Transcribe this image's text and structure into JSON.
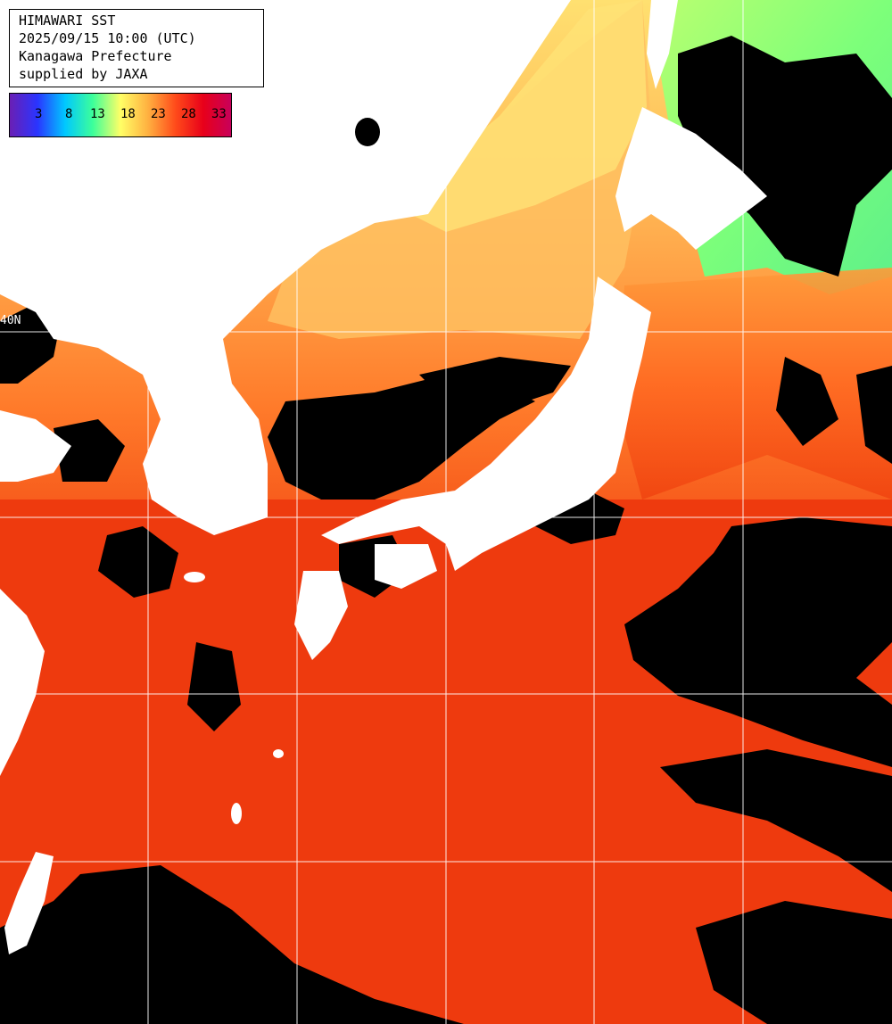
{
  "header": {
    "line1": "HIMAWARI SST",
    "line2": "2025/09/15 10:00 (UTC)",
    "line3": "Kanagawa Prefecture",
    "line4": "supplied by JAXA"
  },
  "legend": {
    "ticks": [
      "3",
      "8",
      "13",
      "18",
      "23",
      "28",
      "33"
    ],
    "gradient_stops": [
      "#6a1fb4",
      "#2a35ff",
      "#00c8ff",
      "#3cff9a",
      "#ffff66",
      "#ffb040",
      "#ff4a1a",
      "#e8001a",
      "#c8005a"
    ]
  },
  "map": {
    "lat_label": "40N",
    "colors": {
      "warm_sea": "#f03e10",
      "mid_sea": "#ff8a30",
      "cool_sea": "#ffd060",
      "cold_sea": "#7dff7a",
      "cloud": "#000000",
      "land": "#ffffff",
      "grid": "#ffffff"
    }
  }
}
